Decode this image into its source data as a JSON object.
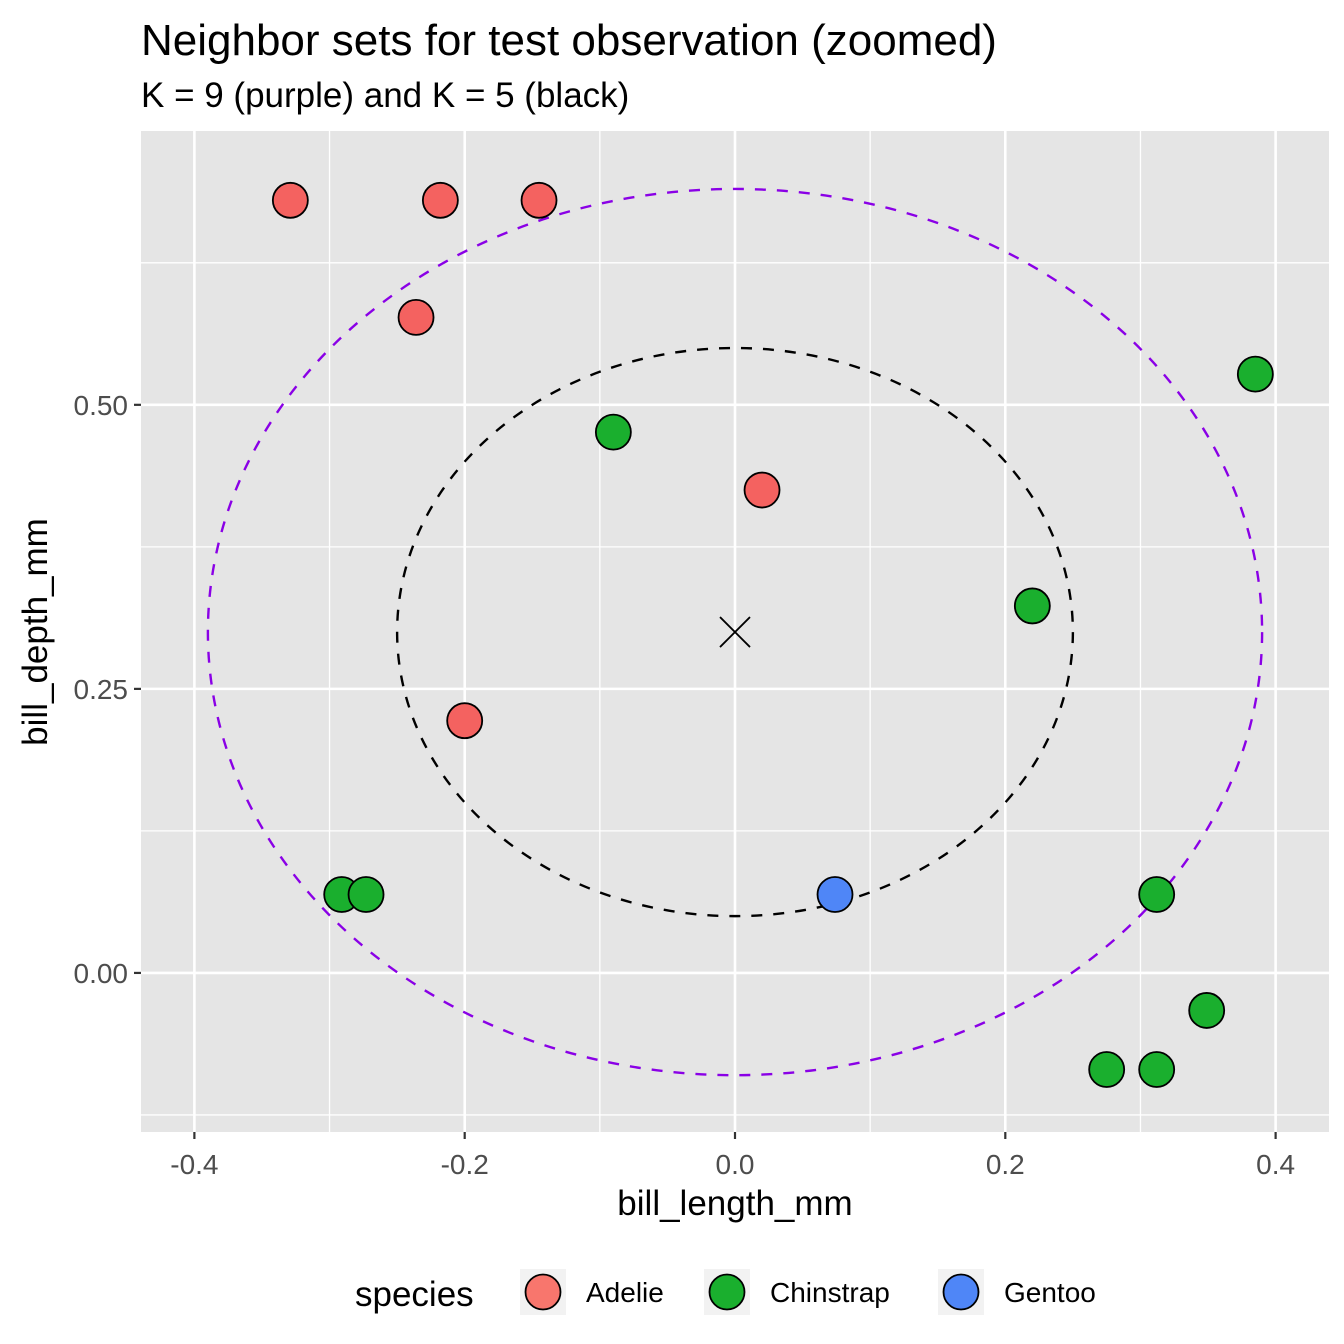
{
  "chart_data": {
    "type": "scatter",
    "title": "Neighbor sets for test observation (zoomed)",
    "subtitle": "K = 9 (purple) and K = 5 (black)",
    "xlabel": "bill_length_mm",
    "ylabel": "bill_depth_mm",
    "xlim": [
      -0.4395,
      0.4395
    ],
    "ylim": [
      -0.14,
      0.741
    ],
    "x_ticks": [
      {
        "value": -0.4,
        "label": "-0.4"
      },
      {
        "value": -0.2,
        "label": "-0.2"
      },
      {
        "value": 0.0,
        "label": "0.0"
      },
      {
        "value": 0.2,
        "label": "0.2"
      },
      {
        "value": 0.4,
        "label": "0.4"
      }
    ],
    "x_minor": [
      -0.3,
      -0.1,
      0.1,
      0.3
    ],
    "y_ticks": [
      {
        "value": 0.0,
        "label": "0.00"
      },
      {
        "value": 0.25,
        "label": "0.25"
      },
      {
        "value": 0.5,
        "label": "0.50"
      }
    ],
    "y_minor": [
      -0.125,
      0.125,
      0.375,
      0.625
    ],
    "grid": true,
    "legend": {
      "title": "species",
      "position": "bottom",
      "entries": [
        {
          "label": "Adelie",
          "color": "#F8766D"
        },
        {
          "label": "Chinstrap",
          "color": "#1AAF2E"
        },
        {
          "label": "Gentoo",
          "color": "#4F86F7"
        }
      ]
    },
    "colors": {
      "Adelie": "#F46260",
      "Chinstrap": "#1AAF2E",
      "Gentoo": "#4F86F7",
      "panel_bg": "#E5E5E5",
      "grid": "#FFFFFF",
      "k9_circle": "#8A00E6",
      "k5_circle": "#000000"
    },
    "test_point": {
      "x": 0.0,
      "y": 0.3,
      "marker": "x"
    },
    "neighbor_circles": [
      {
        "name": "K = 9",
        "center": [
          0.0,
          0.3
        ],
        "radius": 0.39,
        "color": "#8A00E6",
        "style": "dashed"
      },
      {
        "name": "K = 5",
        "center": [
          0.0,
          0.3
        ],
        "radius": 0.25,
        "color": "#000000",
        "style": "dashed"
      }
    ],
    "points": [
      {
        "species": "Adelie",
        "x": -0.329,
        "y": 0.68
      },
      {
        "species": "Adelie",
        "x": -0.218,
        "y": 0.68
      },
      {
        "species": "Adelie",
        "x": -0.145,
        "y": 0.68
      },
      {
        "species": "Adelie",
        "x": -0.236,
        "y": 0.577
      },
      {
        "species": "Adelie",
        "x": 0.02,
        "y": 0.425
      },
      {
        "species": "Adelie",
        "x": -0.2,
        "y": 0.222
      },
      {
        "species": "Chinstrap",
        "x": -0.09,
        "y": 0.476
      },
      {
        "species": "Chinstrap",
        "x": 0.385,
        "y": 0.527
      },
      {
        "species": "Chinstrap",
        "x": 0.22,
        "y": 0.323
      },
      {
        "species": "Chinstrap",
        "x": -0.291,
        "y": 0.069
      },
      {
        "species": "Chinstrap",
        "x": -0.273,
        "y": 0.069
      },
      {
        "species": "Chinstrap",
        "x": 0.312,
        "y": 0.069
      },
      {
        "species": "Chinstrap",
        "x": 0.349,
        "y": -0.033
      },
      {
        "species": "Chinstrap",
        "x": 0.275,
        "y": -0.085
      },
      {
        "species": "Chinstrap",
        "x": 0.312,
        "y": -0.085
      },
      {
        "species": "Gentoo",
        "x": 0.074,
        "y": 0.069
      }
    ]
  }
}
